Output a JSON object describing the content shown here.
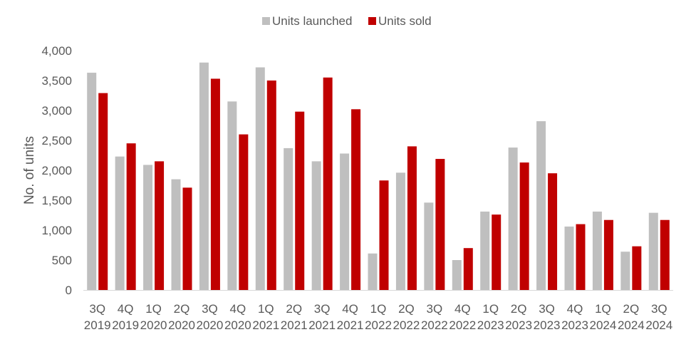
{
  "chart_data": {
    "type": "bar",
    "title": "",
    "xlabel": "",
    "ylabel": "No. of units",
    "ylim": [
      0,
      4000
    ],
    "yticks": [
      0,
      500,
      1000,
      1500,
      2000,
      2500,
      3000,
      3500,
      4000
    ],
    "ytick_labels": [
      "0",
      "500",
      "1,000",
      "1,500",
      "2,000",
      "2,500",
      "3,000",
      "3,500",
      "4,000"
    ],
    "grid": false,
    "legend_position": "top-center",
    "categories": [
      [
        "3Q",
        "2019"
      ],
      [
        "4Q",
        "2019"
      ],
      [
        "1Q",
        "2020"
      ],
      [
        "2Q",
        "2020"
      ],
      [
        "3Q",
        "2020"
      ],
      [
        "4Q",
        "2020"
      ],
      [
        "1Q",
        "2021"
      ],
      [
        "2Q",
        "2021"
      ],
      [
        "3Q",
        "2021"
      ],
      [
        "4Q",
        "2021"
      ],
      [
        "1Q",
        "2022"
      ],
      [
        "2Q",
        "2022"
      ],
      [
        "3Q",
        "2022"
      ],
      [
        "4Q",
        "2022"
      ],
      [
        "1Q",
        "2023"
      ],
      [
        "2Q",
        "2023"
      ],
      [
        "3Q",
        "2023"
      ],
      [
        "4Q",
        "2023"
      ],
      [
        "1Q",
        "2024"
      ],
      [
        "2Q",
        "2024"
      ],
      [
        "3Q",
        "2024"
      ]
    ],
    "series": [
      {
        "name": "Units launched",
        "color": "#bfbfbf",
        "values": [
          3630,
          2230,
          2090,
          1850,
          3800,
          3150,
          3720,
          2370,
          2150,
          2280,
          610,
          1960,
          1460,
          500,
          1310,
          2380,
          2820,
          1060,
          1310,
          640,
          1290
        ]
      },
      {
        "name": "Units sold",
        "color": "#c00000",
        "values": [
          3290,
          2450,
          2150,
          1710,
          3530,
          2600,
          3500,
          2980,
          3550,
          3020,
          1830,
          2400,
          2190,
          700,
          1260,
          2130,
          1950,
          1100,
          1170,
          730,
          1170
        ]
      }
    ]
  }
}
